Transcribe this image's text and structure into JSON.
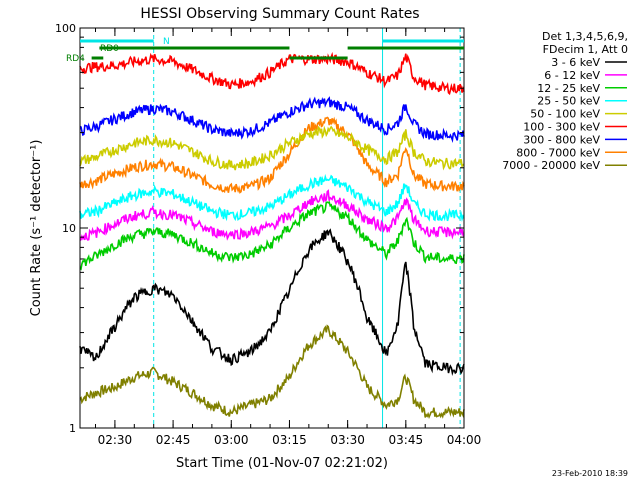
{
  "chart_data": {
    "type": "line",
    "title": "HESSI Observing Summary Count Rates",
    "xlabel": "Start Time (01-Nov-07 02:21:02)",
    "ylabel": "Count Rate (s⁻¹ detector⁻¹)",
    "y_scale": "log",
    "ylim": [
      1,
      100
    ],
    "xlim": [
      "02:21",
      "04:00"
    ],
    "x_ticks": [
      "02:30",
      "02:45",
      "03:00",
      "03:15",
      "03:30",
      "03:45",
      "04:00"
    ],
    "y_ticks": [
      "1",
      "10",
      "100"
    ],
    "legend_header": [
      "Det 1,3,4,5,6,9,",
      "FDecim 1, Att 0"
    ],
    "legend_position": "right",
    "footer_date": "23-Feb-2010 18:39",
    "markers": {
      "N_label": "N",
      "RD0_label": "RD0",
      "RD4_label": "RD4",
      "N_bars": [
        [
          "02:21",
          "02:40"
        ],
        [
          "03:39",
          "04:00"
        ]
      ],
      "RD0_bars": [
        [
          "02:26",
          "03:15"
        ],
        [
          "03:30",
          "04:00"
        ]
      ],
      "RD4_bars": [
        [
          "02:24",
          "02:27"
        ],
        [
          "03:15",
          "03:30"
        ]
      ],
      "cyan_vlines": [
        "02:21",
        "03:39"
      ],
      "cyan_dashed_vlines": [
        "02:40",
        "03:59"
      ],
      "colors": {
        "N": "#00e5e5",
        "RD": "#007f00"
      }
    },
    "series": [
      {
        "name": "3 - 6 keV",
        "color": "#000000",
        "x": [
          "02:21",
          "02:25",
          "02:30",
          "02:35",
          "02:40",
          "02:45",
          "02:50",
          "02:55",
          "03:00",
          "03:05",
          "03:10",
          "03:15",
          "03:20",
          "03:25",
          "03:30",
          "03:35",
          "03:40",
          "03:43",
          "03:45",
          "03:47",
          "03:50",
          "03:55",
          "04:00"
        ],
        "values": [
          2.5,
          2.2,
          3.2,
          4.5,
          5.0,
          4.6,
          3.4,
          2.5,
          2.2,
          2.4,
          3.0,
          4.8,
          7.8,
          9.6,
          6.8,
          3.5,
          2.3,
          3.3,
          6.6,
          3.2,
          2.1,
          2.0,
          2.0
        ]
      },
      {
        "name": "6 - 12 keV",
        "color": "#ff00ff",
        "x": [
          "02:21",
          "02:25",
          "02:30",
          "02:35",
          "02:40",
          "02:45",
          "02:50",
          "02:55",
          "03:00",
          "03:05",
          "03:10",
          "03:15",
          "03:20",
          "03:25",
          "03:30",
          "03:35",
          "03:40",
          "03:43",
          "03:45",
          "03:47",
          "03:50",
          "03:55",
          "04:00"
        ],
        "values": [
          9.0,
          9.4,
          10.5,
          11.5,
          12.0,
          11.6,
          10.6,
          9.6,
          9.3,
          9.5,
          10.2,
          11.5,
          13.5,
          14.5,
          13.0,
          11.0,
          10.0,
          11.2,
          13.8,
          11.0,
          9.7,
          9.5,
          9.6
        ]
      },
      {
        "name": "12 - 25 keV",
        "color": "#00cc00",
        "x": [
          "02:21",
          "02:25",
          "02:30",
          "02:35",
          "02:40",
          "02:45",
          "02:50",
          "02:55",
          "03:00",
          "03:05",
          "03:10",
          "03:15",
          "03:20",
          "03:25",
          "03:30",
          "03:35",
          "03:40",
          "03:43",
          "03:45",
          "03:47",
          "03:50",
          "03:55",
          "04:00"
        ],
        "values": [
          6.6,
          7.2,
          8.3,
          9.2,
          9.6,
          9.3,
          8.4,
          7.5,
          7.1,
          7.4,
          8.2,
          10.0,
          11.8,
          12.8,
          11.3,
          8.7,
          7.4,
          8.6,
          11.2,
          8.5,
          7.2,
          7.0,
          7.1
        ]
      },
      {
        "name": "25 - 50 keV",
        "color": "#00ffff",
        "x": [
          "02:21",
          "02:25",
          "02:30",
          "02:35",
          "02:40",
          "02:45",
          "02:50",
          "02:55",
          "03:00",
          "03:05",
          "03:10",
          "03:15",
          "03:20",
          "03:25",
          "03:30",
          "03:35",
          "03:40",
          "03:43",
          "03:45",
          "03:47",
          "03:50",
          "03:55",
          "04:00"
        ],
        "values": [
          11.6,
          12.1,
          13.3,
          14.6,
          15.3,
          14.8,
          13.4,
          12.1,
          11.6,
          11.9,
          12.8,
          14.6,
          16.5,
          17.5,
          16.0,
          13.5,
          12.0,
          13.3,
          16.6,
          13.2,
          11.8,
          11.5,
          11.6
        ]
      },
      {
        "name": "50 - 100 keV",
        "color": "#cccc00",
        "x": [
          "02:21",
          "02:25",
          "02:30",
          "02:35",
          "02:40",
          "02:45",
          "02:50",
          "02:55",
          "03:00",
          "03:05",
          "03:10",
          "03:15",
          "03:20",
          "03:25",
          "03:30",
          "03:35",
          "03:40",
          "03:43",
          "03:45",
          "03:47",
          "03:50",
          "03:55",
          "04:00"
        ],
        "values": [
          21.5,
          22.6,
          24.6,
          26.6,
          27.6,
          26.6,
          24.1,
          21.6,
          20.6,
          21.1,
          23.1,
          26.6,
          29.6,
          30.6,
          28.6,
          24.6,
          22.1,
          24.1,
          29.6,
          24.1,
          21.6,
          21.1,
          21.1
        ]
      },
      {
        "name": "100 - 300 keV",
        "color": "#ff0000",
        "x": [
          "02:21",
          "02:25",
          "02:30",
          "02:35",
          "02:40",
          "02:45",
          "02:50",
          "02:55",
          "03:00",
          "03:05",
          "03:10",
          "03:15",
          "03:20",
          "03:25",
          "03:30",
          "03:35",
          "03:40",
          "03:43",
          "03:45",
          "03:47",
          "03:50",
          "03:55",
          "04:00"
        ],
        "values": [
          63,
          64,
          65,
          68,
          70,
          68,
          62,
          56,
          52,
          54,
          60,
          70,
          70,
          70,
          68,
          60,
          54,
          58,
          72,
          57,
          52,
          50,
          50
        ]
      },
      {
        "name": "300 - 800 keV",
        "color": "#0000ff",
        "x": [
          "02:21",
          "02:25",
          "02:30",
          "02:35",
          "02:40",
          "02:45",
          "02:50",
          "02:55",
          "03:00",
          "03:05",
          "03:10",
          "03:15",
          "03:20",
          "03:25",
          "03:30",
          "03:35",
          "03:40",
          "03:43",
          "03:45",
          "03:47",
          "03:50",
          "03:55",
          "04:00"
        ],
        "values": [
          30.5,
          32.1,
          35.1,
          38.1,
          39.6,
          38.1,
          34.6,
          31.1,
          29.6,
          30.6,
          33.6,
          38.1,
          41.6,
          42.6,
          40.1,
          34.6,
          31.1,
          33.6,
          41.1,
          33.1,
          29.6,
          29.1,
          29.1
        ]
      },
      {
        "name": "800 - 7000 keV",
        "color": "#ff8000",
        "x": [
          "02:21",
          "02:25",
          "02:30",
          "02:35",
          "02:40",
          "02:45",
          "02:50",
          "02:55",
          "03:00",
          "03:05",
          "03:10",
          "03:15",
          "03:20",
          "03:25",
          "03:30",
          "03:35",
          "03:40",
          "03:43",
          "03:45",
          "03:47",
          "03:50",
          "03:55",
          "04:00"
        ],
        "values": [
          16.5,
          17.2,
          18.7,
          20.2,
          21.0,
          20.2,
          18.3,
          16.5,
          15.7,
          16.1,
          17.7,
          23.6,
          31.6,
          34.6,
          29.6,
          20.6,
          17.0,
          18.6,
          25.6,
          18.4,
          16.6,
          16.2,
          16.2
        ]
      },
      {
        "name": "7000 - 20000 keV",
        "color": "#808000",
        "x": [
          "02:21",
          "02:25",
          "02:30",
          "02:35",
          "02:40",
          "02:45",
          "02:50",
          "02:55",
          "03:00",
          "03:05",
          "03:10",
          "03:15",
          "03:20",
          "03:25",
          "03:30",
          "03:35",
          "03:40",
          "03:43",
          "03:45",
          "03:47",
          "03:50",
          "03:55",
          "04:00"
        ],
        "values": [
          1.4,
          1.5,
          1.6,
          1.8,
          1.9,
          1.7,
          1.5,
          1.3,
          1.2,
          1.3,
          1.4,
          1.8,
          2.6,
          3.1,
          2.4,
          1.6,
          1.3,
          1.4,
          1.8,
          1.4,
          1.2,
          1.2,
          1.2
        ]
      }
    ]
  }
}
